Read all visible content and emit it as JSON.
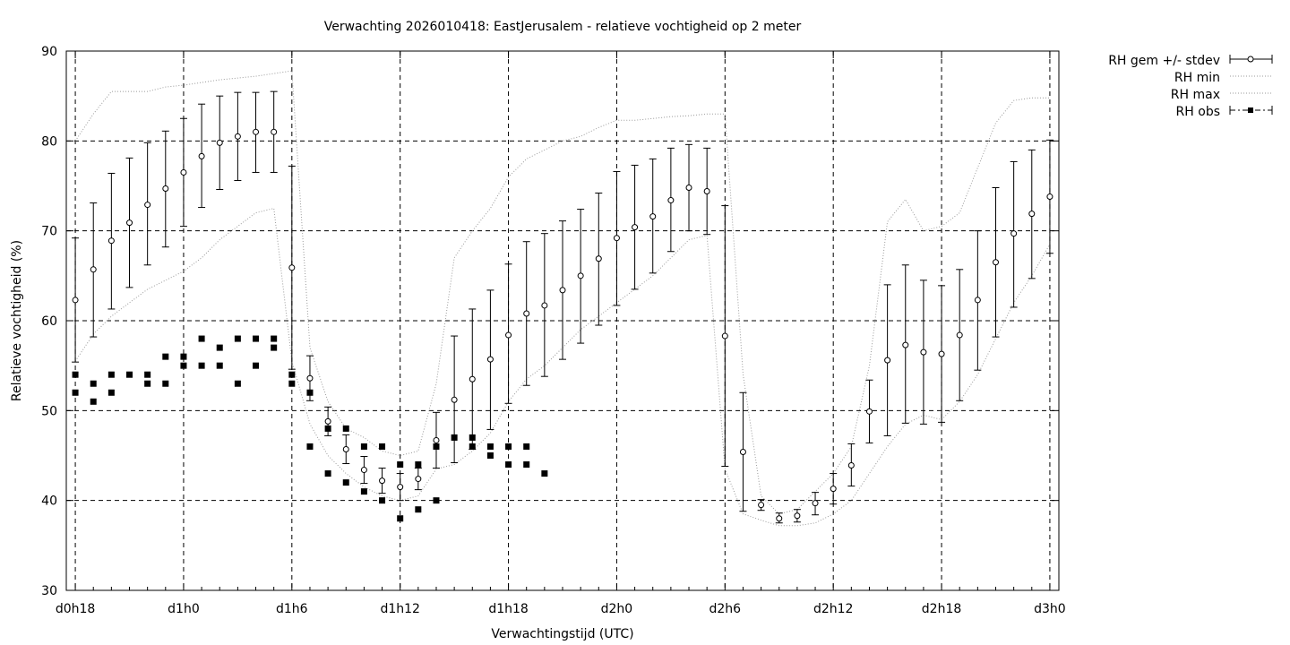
{
  "chart_data": {
    "type": "line",
    "title": "Verwachting 2026010418: EastJerusalem - relatieve vochtigheid op 2 meter",
    "xlabel": "Verwachtingstijd (UTC)",
    "ylabel": "Relatieve vochtigheid (%)",
    "ylim": [
      30,
      90
    ],
    "yticks": [
      30,
      40,
      50,
      60,
      70,
      80,
      90
    ],
    "xlim": [
      17.5,
      72.5
    ],
    "xticks": [
      {
        "x": 18,
        "label": "d0h18"
      },
      {
        "x": 24,
        "label": "d1h0"
      },
      {
        "x": 30,
        "label": "d1h6"
      },
      {
        "x": 36,
        "label": "d1h12"
      },
      {
        "x": 42,
        "label": "d1h18"
      },
      {
        "x": 48,
        "label": "d2h0"
      },
      {
        "x": 54,
        "label": "d2h6"
      },
      {
        "x": 60,
        "label": "d2h12"
      },
      {
        "x": 66,
        "label": "d2h18"
      },
      {
        "x": 72,
        "label": "d3h0"
      }
    ],
    "grid": true,
    "legend_position": "outside-top-right",
    "legend": [
      "RH gem +/- stdev",
      "RH min",
      "RH max",
      "RH obs"
    ],
    "series": [
      {
        "name": "RH gem +/- stdev",
        "style": "errorbars",
        "x": [
          18,
          19,
          20,
          21,
          22,
          23,
          24,
          25,
          26,
          27,
          28,
          29,
          30,
          31,
          32,
          33,
          34,
          35,
          36,
          37,
          38,
          39,
          40,
          41,
          42,
          43,
          44,
          45,
          46,
          47,
          48,
          49,
          50,
          51,
          52,
          53,
          54,
          55,
          56,
          57,
          58,
          59,
          60,
          61,
          62,
          63,
          64,
          65,
          66,
          67,
          68,
          69,
          70,
          71,
          72
        ],
        "mean": [
          62.3,
          65.7,
          68.9,
          70.9,
          72.9,
          74.7,
          76.5,
          78.3,
          79.8,
          80.5,
          81.0,
          81.0,
          65.9,
          53.6,
          48.8,
          45.7,
          43.4,
          42.2,
          41.5,
          42.4,
          46.7,
          51.2,
          53.5,
          55.7,
          58.4,
          60.8,
          61.7,
          63.4,
          65.0,
          66.9,
          69.2,
          70.4,
          71.6,
          73.4,
          74.8,
          74.4,
          58.3,
          45.4,
          39.5,
          38.0,
          38.3,
          39.7,
          41.3,
          43.9,
          49.9,
          55.6,
          57.3,
          56.5,
          56.3,
          58.4,
          62.3,
          66.5,
          69.7,
          71.9,
          73.8
        ],
        "lower": [
          55.4,
          58.2,
          61.3,
          63.7,
          66.2,
          68.2,
          70.5,
          72.6,
          74.6,
          75.6,
          76.5,
          76.5,
          54.6,
          51.1,
          47.2,
          44.1,
          41.9,
          40.8,
          40.0,
          41.2,
          43.6,
          44.2,
          45.7,
          47.9,
          50.8,
          52.8,
          53.8,
          55.7,
          57.5,
          59.5,
          61.7,
          63.5,
          65.3,
          67.7,
          70.0,
          69.6,
          43.8,
          38.8,
          38.9,
          37.5,
          37.6,
          38.4,
          39.6,
          41.6,
          46.4,
          47.2,
          48.6,
          48.5,
          48.7,
          51.1,
          54.5,
          58.2,
          61.5,
          64.7,
          67.5
        ],
        "upper": [
          69.2,
          73.1,
          76.4,
          78.1,
          79.8,
          81.1,
          82.5,
          84.1,
          85.0,
          85.4,
          85.4,
          85.5,
          77.2,
          56.1,
          50.4,
          47.3,
          44.9,
          43.6,
          43.0,
          43.6,
          49.8,
          58.3,
          61.3,
          63.4,
          66.3,
          68.8,
          69.7,
          71.1,
          72.4,
          74.2,
          76.6,
          77.3,
          78.0,
          79.2,
          79.6,
          79.2,
          72.8,
          52.0,
          40.1,
          38.6,
          39.0,
          40.9,
          43.0,
          46.3,
          53.4,
          64.0,
          66.2,
          64.5,
          63.9,
          65.7,
          70.0,
          74.8,
          77.7,
          79.0,
          80.1
        ]
      },
      {
        "name": "RH min",
        "style": "dotted",
        "x": [
          18,
          19,
          20,
          21,
          22,
          23,
          24,
          25,
          26,
          27,
          28,
          29,
          30,
          31,
          32,
          33,
          34,
          35,
          36,
          37,
          38,
          39,
          40,
          41,
          42,
          43,
          44,
          45,
          46,
          47,
          48,
          49,
          50,
          51,
          52,
          53,
          54,
          55,
          56,
          57,
          58,
          59,
          60,
          61,
          62,
          63,
          64,
          65,
          66,
          67,
          68,
          69,
          70,
          71,
          72
        ],
        "y": [
          55.5,
          58.5,
          60.5,
          62,
          63.5,
          64.5,
          65.5,
          67,
          69,
          70.5,
          72,
          72.5,
          55.5,
          48.5,
          45,
          43,
          41.5,
          40.5,
          40,
          40.5,
          43.5,
          44,
          45.5,
          47.5,
          51,
          53.5,
          55,
          57,
          59,
          60.5,
          62,
          63.5,
          65,
          67,
          69,
          69.5,
          43.5,
          38.5,
          37.8,
          37.2,
          37.2,
          37.5,
          38.5,
          40,
          43,
          46,
          48.5,
          49.5,
          49,
          51,
          54,
          58,
          62,
          65,
          68.5
        ]
      },
      {
        "name": "RH max",
        "style": "dotted",
        "x": [
          18,
          19,
          20,
          21,
          22,
          23,
          24,
          25,
          26,
          27,
          28,
          29,
          30,
          31,
          32,
          33,
          34,
          35,
          36,
          37,
          38,
          39,
          40,
          41,
          42,
          43,
          44,
          45,
          46,
          47,
          48,
          49,
          50,
          51,
          52,
          53,
          54,
          55,
          56,
          57,
          58,
          59,
          60,
          61,
          62,
          63,
          64,
          65,
          66,
          67,
          68,
          69,
          70,
          71,
          72
        ],
        "y": [
          80,
          83,
          85.5,
          85.5,
          85.5,
          86,
          86.2,
          86.5,
          86.8,
          87,
          87.2,
          87.5,
          87.8,
          57,
          51,
          48,
          47,
          45.5,
          45,
          45.5,
          53,
          67,
          70,
          72.5,
          76,
          78,
          79,
          80,
          80.5,
          81.5,
          82.3,
          82.3,
          82.5,
          82.7,
          82.8,
          83,
          83,
          54,
          40.5,
          38.5,
          39,
          41,
          43,
          46,
          55,
          71,
          73.5,
          70,
          70.5,
          72,
          77,
          82,
          84.5,
          84.8,
          84.8
        ]
      },
      {
        "name": "RH obs",
        "style": "points",
        "points": [
          [
            18,
            54
          ],
          [
            18,
            52
          ],
          [
            19,
            53
          ],
          [
            19,
            51
          ],
          [
            20,
            54
          ],
          [
            20,
            52
          ],
          [
            21,
            54
          ],
          [
            22,
            54
          ],
          [
            22,
            53
          ],
          [
            23,
            56
          ],
          [
            23,
            53
          ],
          [
            24,
            56
          ],
          [
            24,
            55
          ],
          [
            25,
            58
          ],
          [
            25,
            55
          ],
          [
            26,
            57
          ],
          [
            26,
            55
          ],
          [
            27,
            58
          ],
          [
            27,
            53
          ],
          [
            28,
            58
          ],
          [
            28,
            55
          ],
          [
            29,
            58
          ],
          [
            29,
            57
          ],
          [
            30,
            54
          ],
          [
            30,
            53
          ],
          [
            31,
            52
          ],
          [
            31,
            46
          ],
          [
            32,
            48
          ],
          [
            32,
            43
          ],
          [
            33,
            48
          ],
          [
            33,
            42
          ],
          [
            34,
            46
          ],
          [
            34,
            41
          ],
          [
            35,
            46
          ],
          [
            35,
            40
          ],
          [
            36,
            44
          ],
          [
            36,
            38
          ],
          [
            37,
            44
          ],
          [
            37,
            39
          ],
          [
            38,
            46
          ],
          [
            38,
            40
          ],
          [
            39,
            47
          ],
          [
            40,
            47
          ],
          [
            40,
            46
          ],
          [
            41,
            46
          ],
          [
            41,
            45
          ],
          [
            42,
            46
          ],
          [
            42,
            44
          ],
          [
            43,
            46
          ],
          [
            43,
            44
          ],
          [
            44,
            43
          ]
        ]
      }
    ]
  }
}
